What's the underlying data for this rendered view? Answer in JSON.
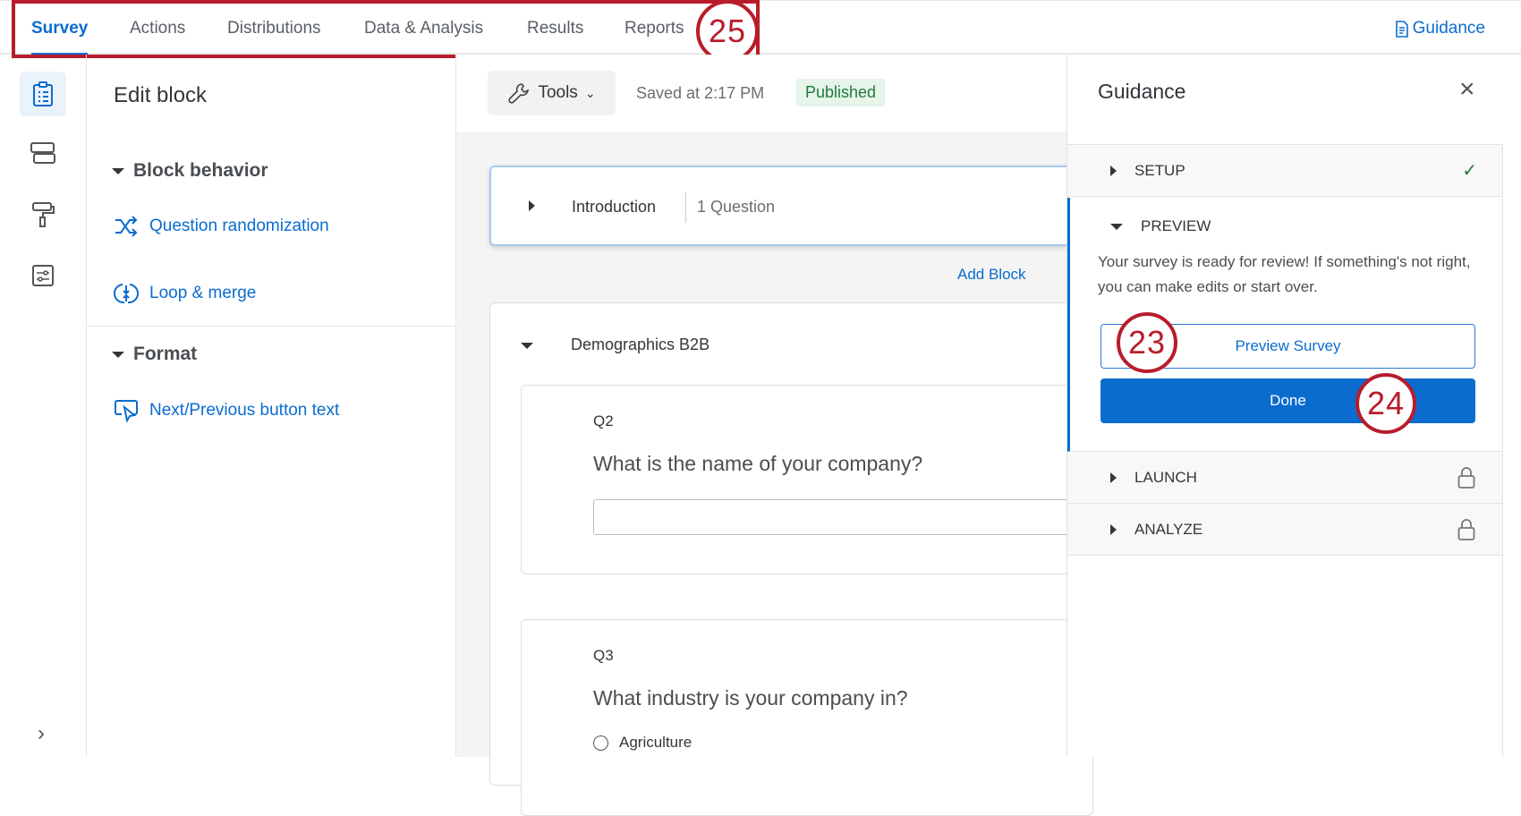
{
  "nav": {
    "tabs": [
      {
        "label": "Survey",
        "active": true
      },
      {
        "label": "Actions"
      },
      {
        "label": "Distributions"
      },
      {
        "label": "Data & Analysis"
      },
      {
        "label": "Results"
      },
      {
        "label": "Reports"
      }
    ],
    "guidance_link": "Guidance"
  },
  "rail": {
    "icons": [
      "survey-clipboard-icon",
      "blocks-icon",
      "look-and-feel-roller-icon",
      "survey-options-icon"
    ],
    "expand": "›"
  },
  "edit_block": {
    "title": "Edit block",
    "sections": [
      {
        "title": "Block behavior",
        "items": [
          "Question randomization",
          "Loop & merge"
        ]
      },
      {
        "title": "Format",
        "items": [
          "Next/Previous button text"
        ]
      }
    ]
  },
  "toolbar": {
    "tools_label": "Tools",
    "saved": "Saved at 2:17 PM",
    "status": "Published"
  },
  "survey": {
    "intro": {
      "name": "Introduction",
      "count": "1 Question"
    },
    "add_block": "Add Block",
    "block2": {
      "name": "Demographics B2B",
      "questions": [
        {
          "id": "Q2",
          "text": "What is the name of your company?"
        },
        {
          "id": "Q3",
          "text": "What industry is your company in?",
          "options": [
            "Agriculture"
          ]
        }
      ]
    }
  },
  "guidance": {
    "title": "Guidance",
    "sections": [
      {
        "label": "SETUP",
        "status": "complete"
      },
      {
        "label": "PREVIEW",
        "text": "Your survey is ready for review! If something's not right, you can make edits or start over.",
        "preview_button": "Preview Survey",
        "done_button": "Done"
      },
      {
        "label": "LAUNCH",
        "status": "locked"
      },
      {
        "label": "ANALYZE",
        "status": "locked"
      }
    ]
  },
  "annotations": {
    "a25": "25",
    "a23": "23",
    "a24": "24"
  },
  "colors": {
    "accent": "#0b6ccf",
    "annotation": "#b81c2b",
    "published_bg": "#e6f4ea",
    "published_text": "#1e7a3a"
  }
}
